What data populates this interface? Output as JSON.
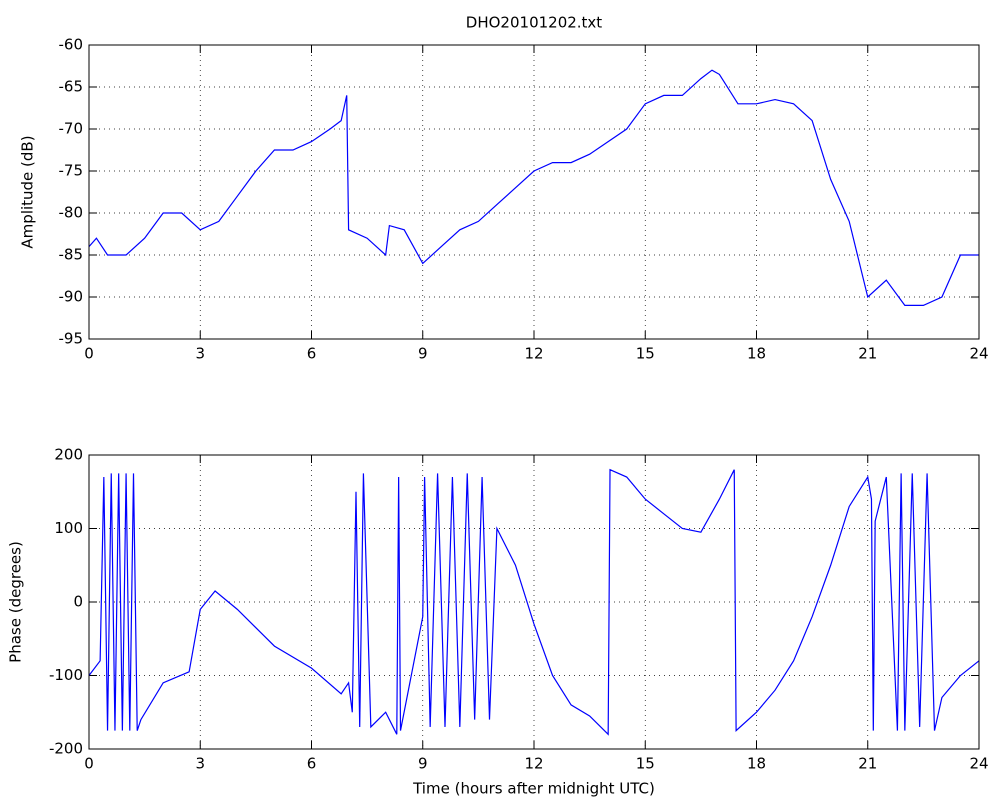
{
  "chart_data": [
    {
      "type": "line",
      "title": "DHO20101202.txt",
      "ylabel": "Amplitude (dB)",
      "xlim": [
        0,
        24
      ],
      "xticks": [
        0,
        3,
        6,
        9,
        12,
        15,
        18,
        21,
        24
      ],
      "ylim": [
        -95,
        -60
      ],
      "yticks": [
        -95,
        -90,
        -85,
        -80,
        -75,
        -70,
        -65,
        -60
      ],
      "grid": true,
      "series": [
        {
          "color": "#0000ff",
          "x": [
            0,
            0.2,
            0.5,
            1,
            1.5,
            2,
            2.5,
            3,
            3.5,
            4,
            4.5,
            5,
            5.5,
            6,
            6.5,
            6.8,
            6.95,
            7.0,
            7.5,
            8,
            8.1,
            8.5,
            9,
            9.5,
            10,
            10.5,
            11,
            11.5,
            12,
            12.5,
            13,
            13.5,
            14,
            14.5,
            15,
            15.5,
            16,
            16.5,
            16.8,
            17,
            17.5,
            18,
            18.5,
            19,
            19.5,
            20,
            20.5,
            21,
            21.5,
            22,
            22.5,
            23,
            23.5,
            24
          ],
          "values": [
            -84,
            -83,
            -85,
            -85,
            -83,
            -80,
            -80,
            -82,
            -81,
            -78,
            -75,
            -72.5,
            -72.5,
            -71.5,
            -70,
            -69,
            -66,
            -82,
            -83,
            -85,
            -81.5,
            -82,
            -86,
            -84,
            -82,
            -81,
            -79,
            -77,
            -75,
            -74,
            -74,
            -73,
            -71.5,
            -70,
            -67,
            -66,
            -66,
            -64,
            -63,
            -63.5,
            -67,
            -67,
            -66.5,
            -67,
            -69,
            -76,
            -81,
            -90,
            -88,
            -91,
            -91,
            -90,
            -85,
            -85
          ]
        }
      ]
    },
    {
      "type": "line",
      "xlabel": "Time (hours after midnight UTC)",
      "ylabel": "Phase (degrees)",
      "xlim": [
        0,
        24
      ],
      "xticks": [
        0,
        3,
        6,
        9,
        12,
        15,
        18,
        21,
        24
      ],
      "ylim": [
        -200,
        200
      ],
      "yticks": [
        -200,
        -100,
        0,
        100,
        200
      ],
      "grid": true,
      "series": [
        {
          "color": "#0000ff",
          "x": [
            0,
            0.3,
            0.4,
            0.5,
            0.6,
            0.7,
            0.8,
            0.9,
            1.0,
            1.1,
            1.2,
            1.3,
            1.4,
            2,
            2.7,
            3.0,
            3.4,
            4,
            5,
            6,
            6.8,
            7.0,
            7.1,
            7.2,
            7.3,
            7.4,
            7.6,
            8.0,
            8.3,
            8.35,
            8.4,
            9.0,
            9.05,
            9.2,
            9.4,
            9.6,
            9.8,
            10,
            10.2,
            10.4,
            10.6,
            10.8,
            11,
            11.5,
            12,
            12.5,
            13,
            13.5,
            14,
            14.05,
            14.5,
            15,
            15.5,
            16,
            16.5,
            17,
            17.4,
            17.45,
            18,
            18.5,
            19,
            19.5,
            20,
            20.5,
            21,
            21.1,
            21.15,
            21.2,
            21.5,
            21.8,
            21.9,
            22,
            22.2,
            22.4,
            22.6,
            22.8,
            23,
            23.5,
            24
          ],
          "values": [
            -100,
            -80,
            170,
            -175,
            175,
            -175,
            175,
            -175,
            175,
            -175,
            175,
            -175,
            -160,
            -110,
            -95,
            -10,
            15,
            -10,
            -60,
            -90,
            -125,
            -110,
            -150,
            150,
            -170,
            175,
            -170,
            -150,
            -180,
            170,
            -175,
            -20,
            170,
            -170,
            175,
            -170,
            170,
            -170,
            175,
            -160,
            170,
            -160,
            100,
            50,
            -30,
            -100,
            -140,
            -155,
            -180,
            180,
            170,
            140,
            120,
            100,
            95,
            140,
            180,
            -175,
            -150,
            -120,
            -80,
            -20,
            50,
            130,
            170,
            140,
            -175,
            110,
            170,
            -175,
            175,
            -175,
            175,
            -170,
            175,
            -175,
            -130,
            -100,
            -80
          ]
        }
      ]
    }
  ]
}
